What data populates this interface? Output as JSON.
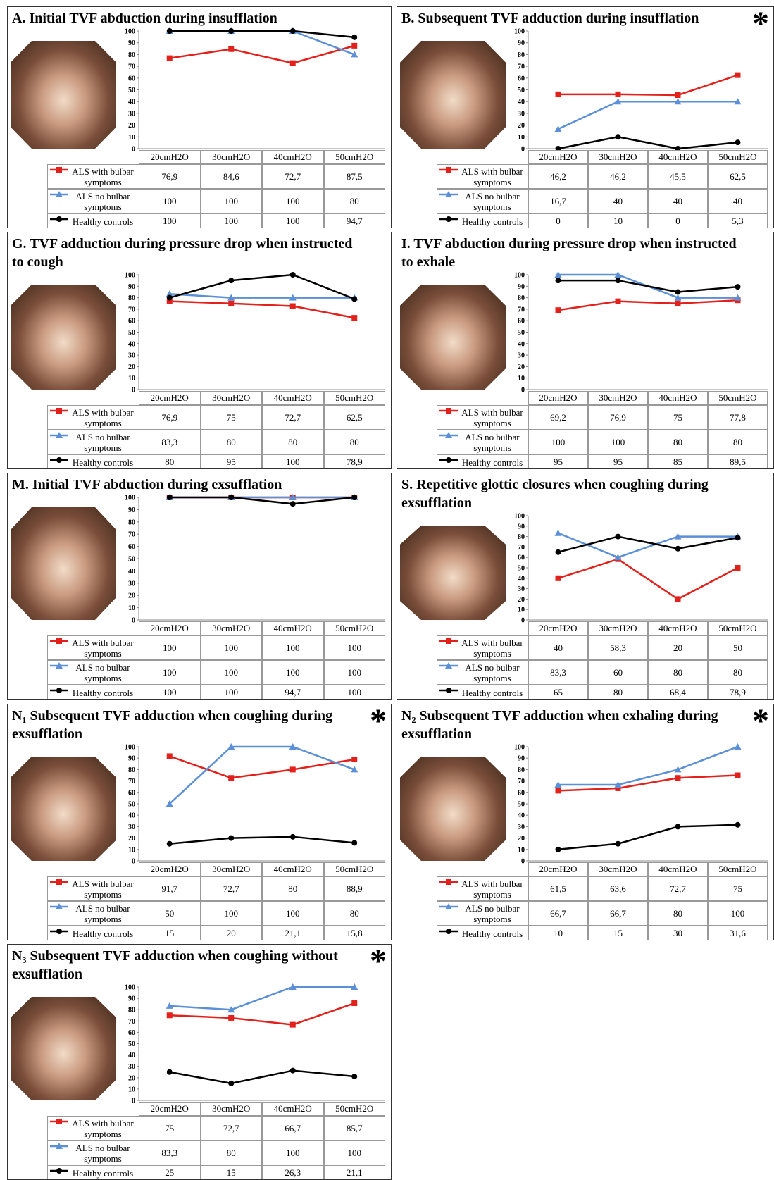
{
  "chart_data": [
    {
      "type": "line",
      "title": "A. Initial TVF abduction during insufflation",
      "categories": [
        "20cmH2O",
        "30cmH2O",
        "40cmH2O",
        "50cmH2O"
      ],
      "ylim": [
        0,
        100
      ],
      "yticks": [
        0,
        10,
        20,
        30,
        40,
        50,
        60,
        70,
        80,
        90,
        100
      ],
      "series": [
        {
          "name": "ALS with bulbar symptoms",
          "color": "#e3211c",
          "marker": "square",
          "values": [
            76.9,
            84.6,
            72.7,
            87.5
          ],
          "value_labels": [
            "76,9",
            "84,6",
            "72,7",
            "87,5"
          ]
        },
        {
          "name": "ALS no bulbar symptoms",
          "color": "#5b8fd6",
          "marker": "triangle",
          "values": [
            100,
            100,
            100,
            80
          ],
          "value_labels": [
            "100",
            "100",
            "100",
            "80"
          ]
        },
        {
          "name": "Healthy controls",
          "color": "#000000",
          "marker": "circle",
          "values": [
            100,
            100,
            100,
            94.7
          ],
          "value_labels": [
            "100",
            "100",
            "100",
            "94,7"
          ]
        }
      ]
    },
    {
      "type": "line",
      "title": "B. Subsequent TVF adduction during insufflation",
      "annotation": "*",
      "categories": [
        "20cmH2O",
        "30cmH2O",
        "40cmH2O",
        "50cmH2O"
      ],
      "ylim": [
        0,
        100
      ],
      "yticks": [
        0,
        10,
        20,
        30,
        40,
        50,
        60,
        70,
        80,
        90,
        100
      ],
      "series": [
        {
          "name": "ALS with bulbar symptoms",
          "color": "#e3211c",
          "marker": "square",
          "values": [
            46.2,
            46.2,
            45.5,
            62.5
          ],
          "value_labels": [
            "46,2",
            "46,2",
            "45,5",
            "62,5"
          ]
        },
        {
          "name": "ALS no bulbar symptoms",
          "color": "#5b8fd6",
          "marker": "triangle",
          "values": [
            16.7,
            40,
            40,
            40
          ],
          "value_labels": [
            "16,7",
            "40",
            "40",
            "40"
          ]
        },
        {
          "name": "Healthy controls",
          "color": "#000000",
          "marker": "circle",
          "values": [
            0,
            10,
            0,
            5.3
          ],
          "value_labels": [
            "0",
            "10",
            "0",
            "5,3"
          ]
        }
      ]
    },
    {
      "type": "line",
      "title": "G. TVF adduction during pressure drop when instructed to cough",
      "categories": [
        "20cmH2O",
        "30cmH2O",
        "40cmH2O",
        "50cmH2O"
      ],
      "ylim": [
        0,
        100
      ],
      "yticks": [
        0,
        10,
        20,
        30,
        40,
        50,
        60,
        70,
        80,
        90,
        100
      ],
      "series": [
        {
          "name": "ALS with bulbar symptoms",
          "color": "#e3211c",
          "marker": "square",
          "values": [
            76.9,
            75,
            72.7,
            62.5
          ],
          "value_labels": [
            "76,9",
            "75",
            "72,7",
            "62,5"
          ]
        },
        {
          "name": "ALS no bulbar symptoms",
          "color": "#5b8fd6",
          "marker": "triangle",
          "values": [
            83.3,
            80,
            80,
            80
          ],
          "value_labels": [
            "83,3",
            "80",
            "80",
            "80"
          ]
        },
        {
          "name": "Healthy controls",
          "color": "#000000",
          "marker": "circle",
          "values": [
            80,
            95,
            100,
            78.9
          ],
          "value_labels": [
            "80",
            "95",
            "100",
            "78,9"
          ]
        }
      ]
    },
    {
      "type": "line",
      "title": "I. TVF abduction during pressure drop when instructed to exhale",
      "categories": [
        "20cmH2O",
        "30cmH2O",
        "40cmH2O",
        "50cmH2O"
      ],
      "ylim": [
        0,
        100
      ],
      "yticks": [
        0,
        10,
        20,
        30,
        40,
        50,
        60,
        70,
        80,
        90,
        100
      ],
      "series": [
        {
          "name": "ALS with bulbar symptoms",
          "color": "#e3211c",
          "marker": "square",
          "values": [
            69.2,
            76.9,
            75,
            77.8
          ],
          "value_labels": [
            "69,2",
            "76,9",
            "75",
            "77,8"
          ]
        },
        {
          "name": "ALS no bulbar symptoms",
          "color": "#5b8fd6",
          "marker": "triangle",
          "values": [
            100,
            100,
            80,
            80
          ],
          "value_labels": [
            "100",
            "100",
            "80",
            "80"
          ]
        },
        {
          "name": "Healthy controls",
          "color": "#000000",
          "marker": "circle",
          "values": [
            95,
            95,
            85,
            89.5
          ],
          "value_labels": [
            "95",
            "95",
            "85",
            "89,5"
          ]
        }
      ]
    },
    {
      "type": "line",
      "title": "M. Initial TVF abduction during exsufflation",
      "categories": [
        "20cmH2O",
        "30cmH2O",
        "40cmH2O",
        "50cmH2O"
      ],
      "ylim": [
        0,
        100
      ],
      "yticks": [
        0,
        10,
        20,
        30,
        40,
        50,
        60,
        70,
        80,
        90,
        100
      ],
      "series": [
        {
          "name": "ALS with bulbar symptoms",
          "color": "#e3211c",
          "marker": "square",
          "values": [
            100,
            100,
            100,
            100
          ],
          "value_labels": [
            "100",
            "100",
            "100",
            "100"
          ]
        },
        {
          "name": "ALS no bulbar symptoms",
          "color": "#5b8fd6",
          "marker": "triangle",
          "values": [
            100,
            100,
            100,
            100
          ],
          "value_labels": [
            "100",
            "100",
            "100",
            "100"
          ]
        },
        {
          "name": "Healthy controls",
          "color": "#000000",
          "marker": "circle",
          "values": [
            100,
            100,
            94.7,
            100
          ],
          "value_labels": [
            "100",
            "100",
            "94,7",
            "100"
          ]
        }
      ]
    },
    {
      "type": "line",
      "title": "S. Repetitive glottic closures when coughing during exsufflation",
      "categories": [
        "20cmH2O",
        "30cmH2O",
        "40cmH2O",
        "50cmH2O"
      ],
      "ylim": [
        0,
        100
      ],
      "yticks": [
        0,
        10,
        20,
        30,
        40,
        50,
        60,
        70,
        80,
        90,
        100
      ],
      "series": [
        {
          "name": "ALS with bulbar symptoms",
          "color": "#e3211c",
          "marker": "square",
          "values": [
            40,
            58.3,
            20,
            50
          ],
          "value_labels": [
            "40",
            "58,3",
            "20",
            "50"
          ]
        },
        {
          "name": "ALS no bulbar symptoms",
          "color": "#5b8fd6",
          "marker": "triangle",
          "values": [
            83.3,
            60,
            80,
            80
          ],
          "value_labels": [
            "83,3",
            "60",
            "80",
            "80"
          ]
        },
        {
          "name": "Healthy controls",
          "color": "#000000",
          "marker": "circle",
          "values": [
            65,
            80,
            68.4,
            78.9
          ],
          "value_labels": [
            "65",
            "80",
            "68,4",
            "78,9"
          ]
        }
      ]
    },
    {
      "type": "line",
      "title": "N₁ Subsequent TVF adduction when coughing during exsufflation",
      "annotation": "*",
      "categories": [
        "20cmH2O",
        "30cmH2O",
        "40cmH2O",
        "50cmH2O"
      ],
      "ylim": [
        0,
        100
      ],
      "yticks": [
        0,
        10,
        20,
        30,
        40,
        50,
        60,
        70,
        80,
        90,
        100
      ],
      "series": [
        {
          "name": "ALS with bulbar symptoms",
          "color": "#e3211c",
          "marker": "square",
          "values": [
            91.7,
            72.7,
            80,
            88.9
          ],
          "value_labels": [
            "91,7",
            "72,7",
            "80",
            "88,9"
          ]
        },
        {
          "name": "ALS no bulbar symptoms",
          "color": "#5b8fd6",
          "marker": "triangle",
          "values": [
            50,
            100,
            100,
            80
          ],
          "value_labels": [
            "50",
            "100",
            "100",
            "80"
          ]
        },
        {
          "name": "Healthy controls",
          "color": "#000000",
          "marker": "circle",
          "values": [
            15,
            20,
            21.1,
            15.8
          ],
          "value_labels": [
            "15",
            "20",
            "21,1",
            "15,8"
          ]
        }
      ]
    },
    {
      "type": "line",
      "title": "N₂ Subsequent TVF adduction when exhaling during exsufflation",
      "annotation": "*",
      "categories": [
        "20cmH2O",
        "30cmH2O",
        "40cmH2O",
        "50cmH2O"
      ],
      "ylim": [
        0,
        100
      ],
      "yticks": [
        0,
        10,
        20,
        30,
        40,
        50,
        60,
        70,
        80,
        90,
        100
      ],
      "series": [
        {
          "name": "ALS with bulbar symptoms",
          "color": "#e3211c",
          "marker": "square",
          "values": [
            61.5,
            63.6,
            72.7,
            75
          ],
          "value_labels": [
            "61,5",
            "63,6",
            "72,7",
            "75"
          ]
        },
        {
          "name": "ALS no bulbar symptoms",
          "color": "#5b8fd6",
          "marker": "triangle",
          "values": [
            66.7,
            66.7,
            80,
            100
          ],
          "value_labels": [
            "66,7",
            "66,7",
            "80",
            "100"
          ]
        },
        {
          "name": "Healthy controls",
          "color": "#000000",
          "marker": "circle",
          "values": [
            10,
            15,
            30,
            31.6
          ],
          "value_labels": [
            "10",
            "15",
            "30",
            "31,6"
          ]
        }
      ]
    },
    {
      "type": "line",
      "title": "N₃ Subsequent TVF adduction when coughing without exsufflation",
      "annotation": "*",
      "categories": [
        "20cmH2O",
        "30cmH2O",
        "40cmH2O",
        "50cmH2O"
      ],
      "ylim": [
        0,
        100
      ],
      "yticks": [
        0,
        10,
        20,
        30,
        40,
        50,
        60,
        70,
        80,
        90,
        100
      ],
      "series": [
        {
          "name": "ALS with bulbar symptoms",
          "color": "#e3211c",
          "marker": "square",
          "values": [
            75,
            72.7,
            66.7,
            85.7
          ],
          "value_labels": [
            "75",
            "72,7",
            "66,7",
            "85,7"
          ]
        },
        {
          "name": "ALS no bulbar symptoms",
          "color": "#5b8fd6",
          "marker": "triangle",
          "values": [
            83.3,
            80,
            100,
            100
          ],
          "value_labels": [
            "83,3",
            "80",
            "100",
            "100"
          ]
        },
        {
          "name": "Healthy controls",
          "color": "#000000",
          "marker": "circle",
          "values": [
            25,
            15,
            26.3,
            21.1
          ],
          "value_labels": [
            "25",
            "15",
            "26,3",
            "21,1"
          ]
        }
      ]
    }
  ]
}
